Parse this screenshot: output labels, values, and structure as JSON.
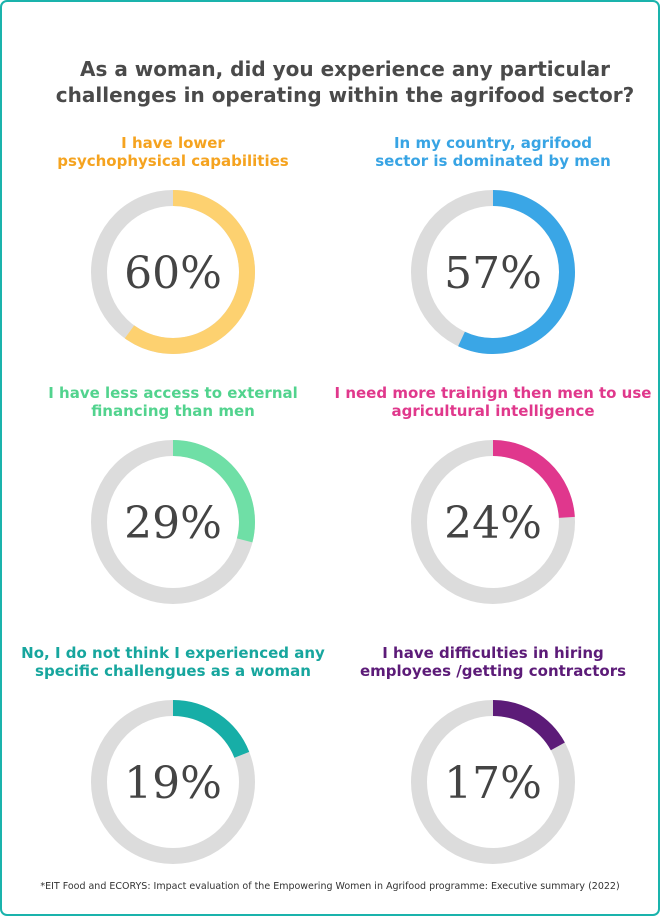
{
  "title": [
    "As a woman, did you experience any particular",
    "challenges in operating within the agrifood sector?"
  ],
  "note": "*EIT Food and ECORYS: Impact evaluation of the Empowering Women in Agrifood programme: Executive summary (2022)",
  "chart_data": [
    {
      "type": "donut",
      "title": [
        "I have lower",
        "psychophysical capabilities"
      ],
      "title_color": "#f5a31f",
      "color": "#fdd170",
      "values": [
        60
      ],
      "value_labels": [
        "60%"
      ]
    },
    {
      "type": "donut",
      "title": [
        "In my country, agrifood",
        "sector is dominated by men"
      ],
      "title_color": "#38a4e4",
      "color": "#3aa6e6",
      "values": [
        57
      ],
      "value_labels": [
        "57%"
      ]
    },
    {
      "type": "donut",
      "title": [
        "I have less access to external",
        "financing than men"
      ],
      "title_color": "#52d38e",
      "color": "#6fdfa6",
      "values": [
        29
      ],
      "value_labels": [
        "29%"
      ]
    },
    {
      "type": "donut",
      "title": [
        "I need more trainign then men to use",
        "agricultural intelligence"
      ],
      "title_color": "#e0388c",
      "color": "#e0378d",
      "values": [
        24
      ],
      "value_labels": [
        "24%"
      ]
    },
    {
      "type": "donut",
      "title": [
        "No, I do not think I experienced any",
        "specific challengues as a woman"
      ],
      "title_color": "#17a69e",
      "color": "#17aea7",
      "values": [
        19
      ],
      "value_labels": [
        "19%"
      ]
    },
    {
      "type": "donut",
      "title": [
        "I have difficulties in hiring",
        "employees /getting contractors"
      ],
      "title_color": "#5c1b78",
      "color": "#5c1b78",
      "values": [
        17
      ],
      "value_labels": [
        "17%"
      ]
    }
  ]
}
